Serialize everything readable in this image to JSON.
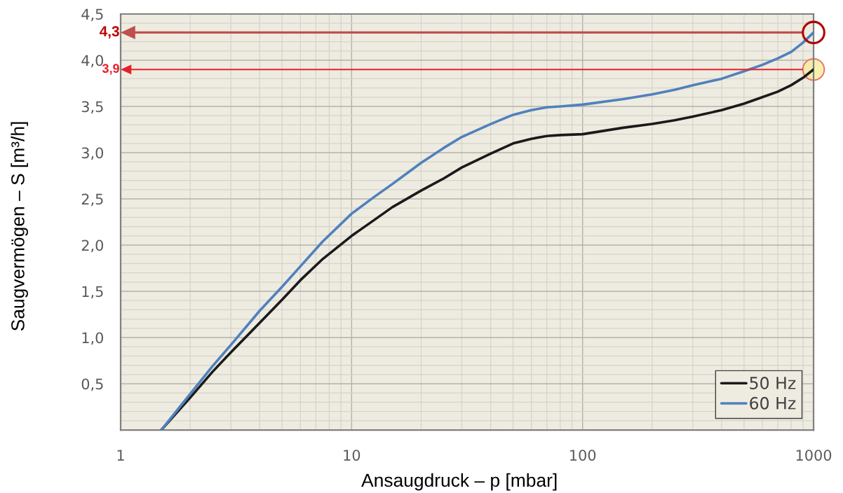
{
  "chart_data": {
    "type": "line",
    "xlabel": "Ansaugdruck – p [mbar]",
    "ylabel": "Saugvermögen – S [m³/h]",
    "log": "x",
    "xlim": [
      1,
      1000
    ],
    "xticks": [
      1,
      10,
      100,
      1000
    ],
    "ylim": [
      0,
      4.5
    ],
    "yticks": [
      {
        "value": 0.5,
        "label": "0,5"
      },
      {
        "value": 1.0,
        "label": "1,0"
      },
      {
        "value": 1.5,
        "label": "1,5"
      },
      {
        "value": 2.0,
        "label": "2,0"
      },
      {
        "value": 2.5,
        "label": "2,5"
      },
      {
        "value": 3.0,
        "label": "3,0"
      },
      {
        "value": 3.5,
        "label": "3,5"
      },
      {
        "value": 4.0,
        "label": "4,0"
      },
      {
        "value": 4.5,
        "label": "4,5"
      }
    ],
    "grid": true,
    "legend": "bottom right",
    "line_style": "solid",
    "ref_lines": [
      {
        "axis": "y",
        "value": 4.3,
        "label": "4,3",
        "color": "#c0504d"
      },
      {
        "axis": "y",
        "value": 3.9,
        "label": "3,9",
        "color": "#e8202a"
      }
    ],
    "x": [
      1.5,
      2,
      2.5,
      3,
      4,
      5,
      6,
      7.5,
      10,
      12.5,
      15,
      20,
      25,
      30,
      40,
      50,
      60,
      70,
      80,
      100,
      150,
      200,
      250,
      300,
      400,
      500,
      600,
      700,
      800,
      900,
      1000
    ],
    "series": [
      {
        "name": "50 Hz",
        "color": "#1a1a1a",
        "values": [
          0,
          0.35,
          0.63,
          0.84,
          1.16,
          1.41,
          1.62,
          1.85,
          2.1,
          2.27,
          2.41,
          2.59,
          2.72,
          2.84,
          2.99,
          3.1,
          3.15,
          3.18,
          3.19,
          3.2,
          3.27,
          3.31,
          3.35,
          3.39,
          3.46,
          3.53,
          3.6,
          3.66,
          3.73,
          3.81,
          3.9
        ]
      },
      {
        "name": "60 Hz",
        "color": "#4f81bd",
        "values": [
          0,
          0.39,
          0.69,
          0.92,
          1.29,
          1.55,
          1.77,
          2.04,
          2.34,
          2.52,
          2.66,
          2.89,
          3.05,
          3.17,
          3.31,
          3.41,
          3.46,
          3.49,
          3.5,
          3.52,
          3.58,
          3.63,
          3.68,
          3.73,
          3.8,
          3.88,
          3.95,
          4.02,
          4.09,
          4.19,
          4.3
        ]
      }
    ]
  }
}
